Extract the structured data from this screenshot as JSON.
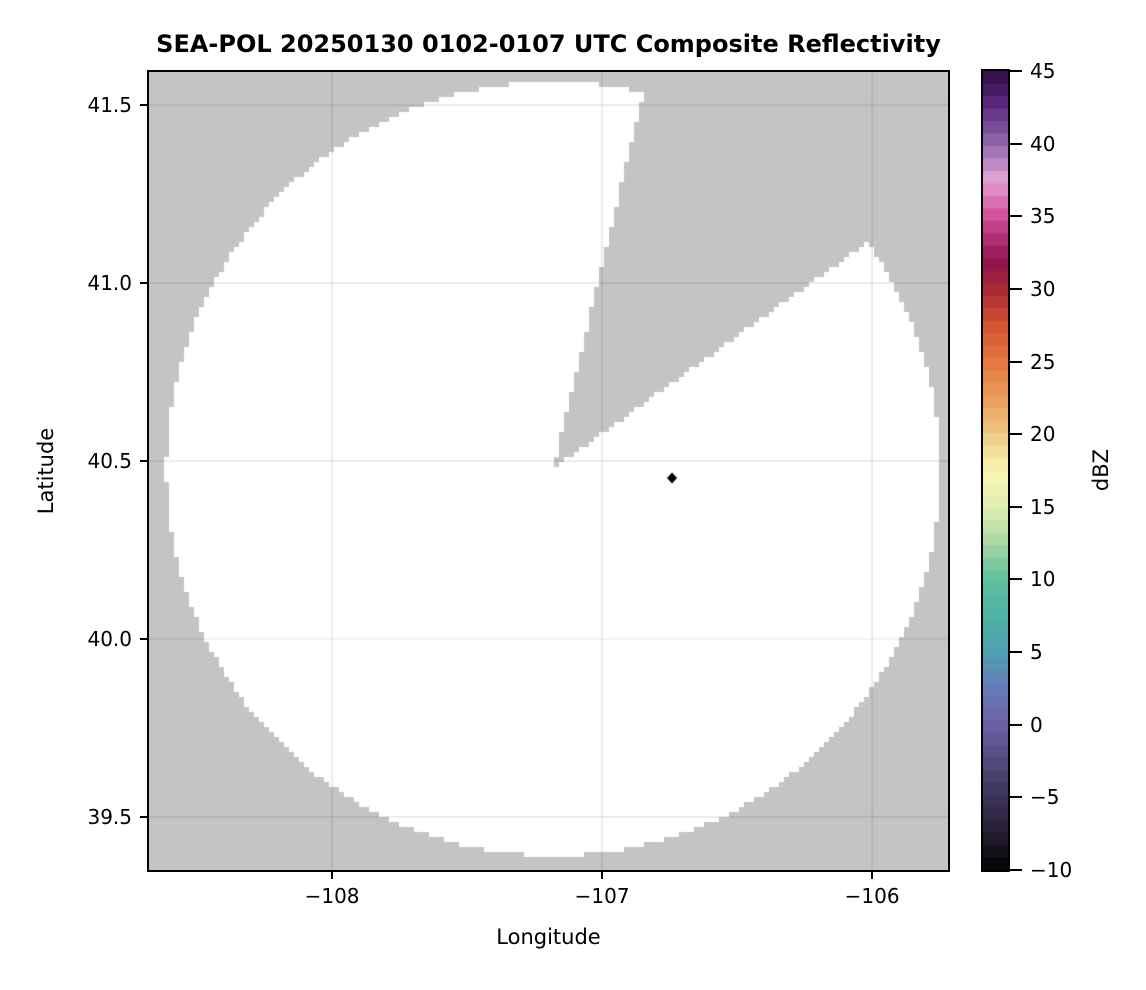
{
  "chart_data": {
    "type": "heatmap",
    "title": "SEA-POL 20250130 0102-0107 UTC Composite Reflectivity",
    "xlabel": "Longitude",
    "ylabel": "Latitude",
    "xlim": [
      -108.678,
      -105.719
    ],
    "ylim": [
      39.351,
      41.593
    ],
    "grid": true,
    "grid_color": "rgba(0,0,0,0.12)",
    "xticks": {
      "values": [
        -108,
        -107,
        -106
      ],
      "labels": [
        "−108",
        "−107",
        "−106"
      ]
    },
    "yticks": {
      "values": [
        39.5,
        40.0,
        40.5,
        41.0,
        41.5
      ],
      "labels": [
        "39.5",
        "40.0",
        "40.5",
        "41.0",
        "41.5"
      ]
    },
    "no_data_color": "#c4c4c4",
    "data_fill_color": "#ffffff",
    "radar_coverage": {
      "description": "White disk = SEA-POL radar coverage area (reflectivity below colormap minimum); gray = no data, including a blocked pie sector",
      "center_lon": -107.181,
      "center_lat": 40.478,
      "radius_deg_lat": 1.087,
      "blocked_sector_azimuth_deg": [
        13.5,
        54.2
      ]
    },
    "marker": {
      "lon": -106.741,
      "lat": 40.452,
      "shape": "diamond",
      "color": "#000000"
    },
    "colorbar": {
      "label": "dBZ",
      "min": -10,
      "max": 45,
      "n_bands": 64,
      "tick_values": [
        45,
        40,
        35,
        30,
        25,
        20,
        15,
        10,
        5,
        0,
        -5,
        -10
      ],
      "tick_labels": [
        "45",
        "40",
        "35",
        "30",
        "25",
        "20",
        "15",
        "10",
        "5",
        "0",
        "−5",
        "−10"
      ],
      "color_stops": [
        [
          -10.0,
          "#020202"
        ],
        [
          -7.5,
          "#241d31"
        ],
        [
          -5.0,
          "#3d3459"
        ],
        [
          -2.5,
          "#544a7c"
        ],
        [
          0.0,
          "#6a60a4"
        ],
        [
          2.5,
          "#667cb6"
        ],
        [
          5.0,
          "#4fa0b0"
        ],
        [
          7.5,
          "#4db2a2"
        ],
        [
          10.0,
          "#5fbf9a"
        ],
        [
          12.5,
          "#a9d8a5"
        ],
        [
          15.0,
          "#e0eeb1"
        ],
        [
          17.5,
          "#f8f6b2"
        ],
        [
          20.0,
          "#eec986"
        ],
        [
          22.5,
          "#eb9a5b"
        ],
        [
          25.0,
          "#e3773e"
        ],
        [
          27.5,
          "#d25331"
        ],
        [
          30.0,
          "#a82734"
        ],
        [
          32.0,
          "#8e1450"
        ],
        [
          35.0,
          "#d24f9c"
        ],
        [
          37.5,
          "#dfa5d3"
        ],
        [
          40.0,
          "#9167ab"
        ],
        [
          42.5,
          "#5d2c85"
        ],
        [
          45.0,
          "#310a41"
        ]
      ]
    }
  }
}
